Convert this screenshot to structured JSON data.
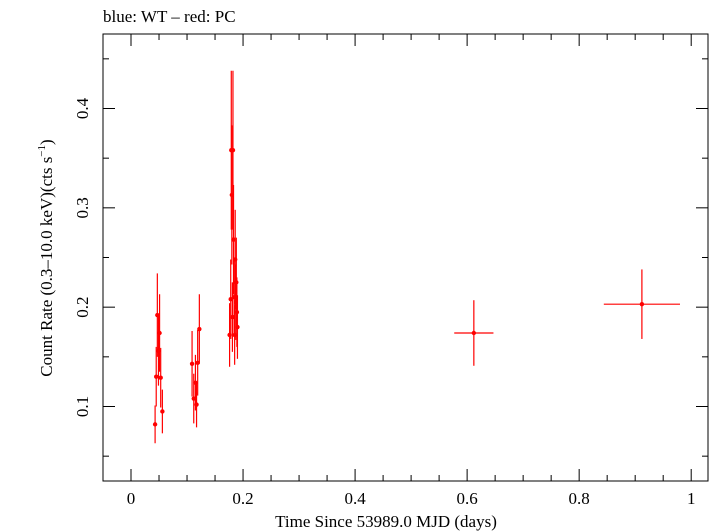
{
  "chart_data": {
    "type": "scatter",
    "title": "blue: WT – red: PC",
    "xlabel": "Time Since 53989.0 MJD (days)",
    "ylabel_main": "Count Rate (0.3–10.0 keV)(cts s",
    "ylabel_sup": "−1",
    "ylabel_end": ")",
    "xlim": [
      -0.05,
      1.03
    ],
    "ylim": [
      0.025,
      0.475
    ],
    "xticks": [
      0,
      0.2,
      0.4,
      0.6,
      0.8,
      1
    ],
    "xtick_labels": [
      "0",
      "0.2",
      "0.4",
      "0.6",
      "0.8",
      "1"
    ],
    "yticks": [
      0.1,
      0.2,
      0.3,
      0.4
    ],
    "ytick_labels": [
      "0.1",
      "0.2",
      "0.3",
      "0.4"
    ],
    "grid": false,
    "series": [
      {
        "color": "#ff0000",
        "points": [
          {
            "x": 0.043,
            "y": 0.082,
            "xerr": 0.001,
            "yerr_lo": 0.019,
            "yerr_hi": 0.019
          },
          {
            "x": 0.045,
            "y": 0.13,
            "xerr": 0.001,
            "yerr_lo": 0.03,
            "yerr_hi": 0.03
          },
          {
            "x": 0.047,
            "y": 0.192,
            "xerr": 0.001,
            "yerr_lo": 0.042,
            "yerr_hi": 0.042
          },
          {
            "x": 0.049,
            "y": 0.156,
            "xerr": 0.001,
            "yerr_lo": 0.035,
            "yerr_hi": 0.035
          },
          {
            "x": 0.051,
            "y": 0.174,
            "xerr": 0.001,
            "yerr_lo": 0.039,
            "yerr_hi": 0.039
          },
          {
            "x": 0.053,
            "y": 0.129,
            "xerr": 0.001,
            "yerr_lo": 0.03,
            "yerr_hi": 0.03
          },
          {
            "x": 0.056,
            "y": 0.095,
            "xerr": 0.001,
            "yerr_lo": 0.022,
            "yerr_hi": 0.022
          },
          {
            "x": 0.109,
            "y": 0.143,
            "xerr": 0.001,
            "yerr_lo": 0.033,
            "yerr_hi": 0.033
          },
          {
            "x": 0.112,
            "y": 0.108,
            "xerr": 0.001,
            "yerr_lo": 0.025,
            "yerr_hi": 0.025
          },
          {
            "x": 0.115,
            "y": 0.124,
            "xerr": 0.001,
            "yerr_lo": 0.028,
            "yerr_hi": 0.028
          },
          {
            "x": 0.117,
            "y": 0.102,
            "xerr": 0.001,
            "yerr_lo": 0.023,
            "yerr_hi": 0.023
          },
          {
            "x": 0.119,
            "y": 0.144,
            "xerr": 0.001,
            "yerr_lo": 0.033,
            "yerr_hi": 0.033
          },
          {
            "x": 0.122,
            "y": 0.178,
            "xerr": 0.001,
            "yerr_lo": 0.035,
            "yerr_hi": 0.035
          },
          {
            "x": 0.176,
            "y": 0.172,
            "xerr": 0.001,
            "yerr_lo": 0.032,
            "yerr_hi": 0.032
          },
          {
            "x": 0.178,
            "y": 0.208,
            "xerr": 0.001,
            "yerr_lo": 0.04,
            "yerr_hi": 0.04
          },
          {
            "x": 0.179,
            "y": 0.358,
            "xerr": 0.001,
            "yerr_lo": 0.08,
            "yerr_hi": 0.08
          },
          {
            "x": 0.18,
            "y": 0.313,
            "xerr": 0.001,
            "yerr_lo": 0.07,
            "yerr_hi": 0.07
          },
          {
            "x": 0.181,
            "y": 0.19,
            "xerr": 0.001,
            "yerr_lo": 0.035,
            "yerr_hi": 0.035
          },
          {
            "x": 0.182,
            "y": 0.358,
            "xerr": 0.001,
            "yerr_lo": 0.08,
            "yerr_hi": 0.08
          },
          {
            "x": 0.183,
            "y": 0.268,
            "xerr": 0.001,
            "yerr_lo": 0.055,
            "yerr_hi": 0.055
          },
          {
            "x": 0.184,
            "y": 0.21,
            "xerr": 0.001,
            "yerr_lo": 0.04,
            "yerr_hi": 0.04
          },
          {
            "x": 0.185,
            "y": 0.172,
            "xerr": 0.001,
            "yerr_lo": 0.03,
            "yerr_hi": 0.03
          },
          {
            "x": 0.186,
            "y": 0.248,
            "xerr": 0.001,
            "yerr_lo": 0.05,
            "yerr_hi": 0.05
          },
          {
            "x": 0.187,
            "y": 0.205,
            "xerr": 0.001,
            "yerr_lo": 0.038,
            "yerr_hi": 0.038
          },
          {
            "x": 0.188,
            "y": 0.225,
            "xerr": 0.001,
            "yerr_lo": 0.045,
            "yerr_hi": 0.045
          },
          {
            "x": 0.189,
            "y": 0.195,
            "xerr": 0.001,
            "yerr_lo": 0.035,
            "yerr_hi": 0.035
          },
          {
            "x": 0.19,
            "y": 0.18,
            "xerr": 0.001,
            "yerr_lo": 0.032,
            "yerr_hi": 0.032
          },
          {
            "x": 0.612,
            "y": 0.174,
            "xerr": 0.035,
            "yerr_lo": 0.033,
            "yerr_hi": 0.033
          },
          {
            "x": 0.912,
            "y": 0.203,
            "xerr": 0.068,
            "yerr_lo": 0.035,
            "yerr_hi": 0.035
          }
        ]
      }
    ]
  }
}
